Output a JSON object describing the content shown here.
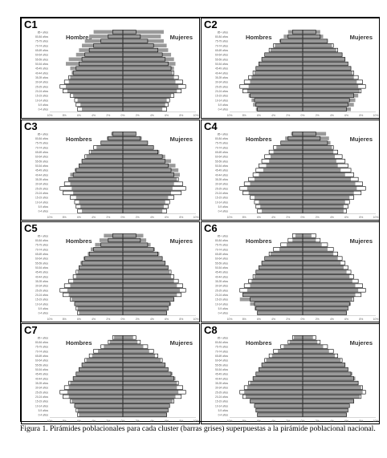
{
  "x_axis_ticks": [
    "10%",
    "8%",
    "6%",
    "4%",
    "2%",
    "0%",
    "2%",
    "4%",
    "6%",
    "8%",
    "10%"
  ],
  "age_groups": [
    "85+ años",
    "80-84 años",
    "75-79 años",
    "70-74 años",
    "65-69 años",
    "60-64 años",
    "55-59 años",
    "50-54 años",
    "45-49 años",
    "40-44 años",
    "35-39 años",
    "30-34 años",
    "25-29 años",
    "20-24 años",
    "15-19 años",
    "10-14 años",
    "5-9 años",
    "0-4 años"
  ],
  "national_pyramid": {
    "hombres": [
      1.4,
      2.0,
      3.0,
      4.0,
      4.6,
      5.2,
      5.6,
      6.0,
      6.4,
      6.8,
      7.4,
      8.0,
      8.6,
      8.2,
      7.2,
      6.6,
      6.4,
      6.2
    ],
    "mujeres": [
      1.8,
      2.4,
      3.4,
      4.2,
      4.8,
      5.4,
      5.8,
      6.2,
      6.6,
      7.0,
      7.6,
      8.2,
      8.6,
      8.0,
      7.0,
      6.4,
      6.2,
      6.0
    ]
  },
  "chart_data": [
    {
      "type": "bar",
      "title": "C1",
      "left_label": "Hombres",
      "right_label": "Mujeres",
      "hombres": [
        4.0,
        4.6,
        5.2,
        5.6,
        6.0,
        6.4,
        7.4,
        7.8,
        7.2,
        7.0,
        7.2,
        7.4,
        7.8,
        7.6,
        6.8,
        6.2,
        5.8,
        5.6
      ],
      "mujeres": [
        5.6,
        5.2,
        5.6,
        6.0,
        6.2,
        6.6,
        7.0,
        7.2,
        7.0,
        6.8,
        7.0,
        7.2,
        7.6,
        7.4,
        6.6,
        6.0,
        5.8,
        5.4
      ]
    },
    {
      "type": "bar",
      "title": "C2",
      "left_label": "Hombres",
      "right_label": "Mujeres",
      "hombres": [
        2.0,
        2.6,
        3.2,
        3.8,
        4.4,
        5.2,
        5.6,
        6.0,
        6.4,
        6.6,
        7.0,
        7.2,
        7.4,
        7.6,
        7.4,
        7.0,
        6.8,
        6.4
      ],
      "mujeres": [
        2.4,
        2.8,
        3.4,
        4.0,
        4.6,
        5.4,
        5.8,
        6.2,
        6.6,
        6.8,
        7.0,
        7.4,
        7.6,
        7.8,
        7.6,
        7.2,
        7.0,
        6.6
      ]
    },
    {
      "type": "bar",
      "title": "C3",
      "left_label": "Hombres",
      "right_label": "Mujeres",
      "hombres": [
        1.6,
        2.2,
        3.0,
        3.6,
        4.4,
        5.0,
        5.6,
        6.0,
        6.6,
        7.2,
        7.4,
        7.2,
        7.0,
        6.8,
        6.4,
        6.0,
        5.8,
        5.6
      ],
      "mujeres": [
        1.8,
        2.6,
        3.4,
        4.2,
        5.0,
        5.8,
        6.6,
        7.2,
        7.6,
        7.8,
        7.4,
        7.0,
        6.8,
        6.6,
        6.2,
        5.8,
        5.6,
        5.4
      ]
    },
    {
      "type": "bar",
      "title": "C4",
      "left_label": "Hombres",
      "right_label": "Mujeres",
      "hombres": [
        1.6,
        2.4,
        3.0,
        3.6,
        4.0,
        4.4,
        4.6,
        5.0,
        5.4,
        6.0,
        6.6,
        7.2,
        7.6,
        7.4,
        6.6,
        6.0,
        5.8,
        5.6
      ],
      "mujeres": [
        3.2,
        3.6,
        3.8,
        4.0,
        4.2,
        4.4,
        4.6,
        4.8,
        5.2,
        5.8,
        6.6,
        7.2,
        7.4,
        7.0,
        6.4,
        5.8,
        5.6,
        5.6
      ]
    },
    {
      "type": "bar",
      "title": "C5",
      "left_label": "Hombres",
      "right_label": "Mujeres",
      "hombres": [
        2.6,
        3.2,
        3.8,
        4.4,
        4.8,
        5.4,
        5.8,
        6.0,
        6.2,
        6.4,
        6.8,
        7.2,
        7.6,
        7.4,
        7.0,
        6.6,
        6.2,
        6.0
      ],
      "mujeres": [
        2.8,
        3.2,
        3.8,
        4.4,
        5.0,
        5.4,
        5.8,
        6.2,
        6.4,
        6.6,
        7.0,
        7.4,
        7.8,
        7.4,
        7.0,
        6.6,
        6.2,
        6.0
      ]
    },
    {
      "type": "bar",
      "title": "C6",
      "left_label": "Hombres",
      "right_label": "Mujeres",
      "hombres": [
        1.0,
        1.4,
        2.2,
        3.2,
        4.4,
        5.2,
        5.6,
        6.0,
        6.4,
        6.6,
        7.0,
        7.2,
        7.6,
        8.2,
        8.6,
        7.2,
        6.6,
        6.2
      ],
      "mujeres": [
        1.2,
        1.8,
        2.6,
        3.4,
        4.2,
        4.8,
        5.2,
        5.6,
        6.0,
        6.4,
        6.8,
        7.2,
        7.6,
        7.2,
        6.8,
        6.6,
        6.2,
        6.0
      ]
    },
    {
      "type": "bar",
      "title": "C7",
      "left_label": "Hombres",
      "right_label": "Mujeres",
      "hombres": [
        1.2,
        1.8,
        2.6,
        3.4,
        4.2,
        5.0,
        5.6,
        6.0,
        6.4,
        6.8,
        7.2,
        7.4,
        7.6,
        7.4,
        7.0,
        6.6,
        6.2,
        6.0
      ],
      "mujeres": [
        1.4,
        2.0,
        2.8,
        3.6,
        4.4,
        5.2,
        5.8,
        6.2,
        6.8,
        7.2,
        7.4,
        7.4,
        7.6,
        7.2,
        6.8,
        6.4,
        6.2,
        6.0
      ]
    },
    {
      "type": "bar",
      "title": "C8",
      "left_label": "Hombres",
      "right_label": "Mujeres",
      "hombres": [
        1.2,
        1.8,
        2.6,
        3.4,
        4.2,
        5.0,
        5.6,
        6.0,
        6.4,
        6.8,
        7.2,
        7.6,
        8.0,
        7.8,
        7.2,
        6.6,
        6.4,
        6.2
      ],
      "mujeres": [
        1.4,
        2.0,
        2.8,
        3.6,
        4.4,
        5.2,
        5.8,
        6.2,
        6.8,
        7.2,
        7.6,
        8.0,
        8.2,
        7.8,
        7.0,
        6.4,
        6.2,
        6.0
      ]
    }
  ],
  "caption": "Figura 1. Pirámides poblacionales para cada cluster (barras grises) superpuestas a la pirámide poblacional nacional."
}
